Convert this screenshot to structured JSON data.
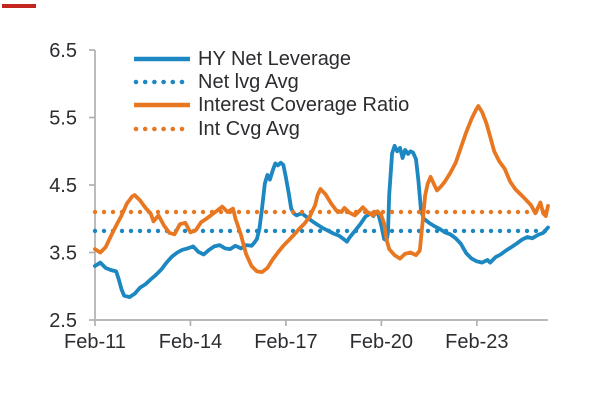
{
  "colors": {
    "blue": "#1d87c1",
    "orange": "#e87722",
    "axis": "#b0b0b0",
    "text": "#2d2d31",
    "top_left_mark": "#c2261f"
  },
  "chart_data": {
    "type": "line",
    "title": "",
    "xlabel": "",
    "ylabel": "",
    "grid": false,
    "legend_position": "top-left-inside",
    "x_axis": {
      "tick_labels": [
        "Feb-11",
        "Feb-14",
        "Feb-17",
        "Feb-20",
        "Feb-23"
      ],
      "tick_years": [
        2011.083,
        2014.083,
        2017.083,
        2020.083,
        2023.083
      ],
      "range": [
        2011.083,
        2025.32
      ]
    },
    "y_axis": {
      "ticks": [
        2.5,
        3.5,
        4.5,
        5.5,
        6.5
      ],
      "tick_labels": [
        "2.5",
        "3.5",
        "4.5",
        "5.5",
        "6.5"
      ],
      "range": [
        2.5,
        6.5
      ]
    },
    "series": [
      {
        "name": "HY Net Leverage",
        "style": "solid",
        "color": "#1d87c1",
        "points": [
          [
            2011.08,
            3.3
          ],
          [
            2011.25,
            3.35
          ],
          [
            2011.42,
            3.27
          ],
          [
            2011.58,
            3.24
          ],
          [
            2011.75,
            3.22
          ],
          [
            2011.83,
            3.1
          ],
          [
            2011.92,
            2.95
          ],
          [
            2012.0,
            2.86
          ],
          [
            2012.17,
            2.84
          ],
          [
            2012.33,
            2.89
          ],
          [
            2012.5,
            2.98
          ],
          [
            2012.67,
            3.03
          ],
          [
            2012.83,
            3.1
          ],
          [
            2013.0,
            3.17
          ],
          [
            2013.17,
            3.25
          ],
          [
            2013.33,
            3.35
          ],
          [
            2013.5,
            3.44
          ],
          [
            2013.67,
            3.5
          ],
          [
            2013.83,
            3.54
          ],
          [
            2014.0,
            3.56
          ],
          [
            2014.17,
            3.59
          ],
          [
            2014.33,
            3.51
          ],
          [
            2014.5,
            3.47
          ],
          [
            2014.67,
            3.54
          ],
          [
            2014.83,
            3.59
          ],
          [
            2015.0,
            3.61
          ],
          [
            2015.17,
            3.56
          ],
          [
            2015.33,
            3.55
          ],
          [
            2015.5,
            3.6
          ],
          [
            2015.67,
            3.56
          ],
          [
            2015.83,
            3.61
          ],
          [
            2016.0,
            3.6
          ],
          [
            2016.08,
            3.64
          ],
          [
            2016.17,
            3.7
          ],
          [
            2016.25,
            3.85
          ],
          [
            2016.33,
            4.15
          ],
          [
            2016.42,
            4.52
          ],
          [
            2016.5,
            4.65
          ],
          [
            2016.58,
            4.58
          ],
          [
            2016.67,
            4.72
          ],
          [
            2016.75,
            4.82
          ],
          [
            2016.83,
            4.79
          ],
          [
            2016.92,
            4.83
          ],
          [
            2017.0,
            4.8
          ],
          [
            2017.08,
            4.62
          ],
          [
            2017.17,
            4.38
          ],
          [
            2017.25,
            4.15
          ],
          [
            2017.33,
            4.08
          ],
          [
            2017.42,
            4.05
          ],
          [
            2017.58,
            4.08
          ],
          [
            2017.75,
            4.02
          ],
          [
            2017.92,
            3.96
          ],
          [
            2018.08,
            3.91
          ],
          [
            2018.25,
            3.86
          ],
          [
            2018.42,
            3.82
          ],
          [
            2018.58,
            3.78
          ],
          [
            2018.75,
            3.75
          ],
          [
            2018.92,
            3.69
          ],
          [
            2019.0,
            3.66
          ],
          [
            2019.08,
            3.72
          ],
          [
            2019.25,
            3.82
          ],
          [
            2019.42,
            3.92
          ],
          [
            2019.58,
            4.03
          ],
          [
            2019.75,
            4.08
          ],
          [
            2019.83,
            4.04
          ],
          [
            2019.92,
            4.1
          ],
          [
            2020.0,
            4.05
          ],
          [
            2020.08,
            3.9
          ],
          [
            2020.17,
            3.7
          ],
          [
            2020.25,
            3.68
          ],
          [
            2020.29,
            3.8
          ],
          [
            2020.33,
            4.35
          ],
          [
            2020.42,
            4.97
          ],
          [
            2020.5,
            5.08
          ],
          [
            2020.58,
            5.0
          ],
          [
            2020.67,
            5.05
          ],
          [
            2020.75,
            4.9
          ],
          [
            2020.83,
            5.02
          ],
          [
            2020.92,
            4.96
          ],
          [
            2021.0,
            5.0
          ],
          [
            2021.08,
            4.98
          ],
          [
            2021.17,
            4.88
          ],
          [
            2021.25,
            4.55
          ],
          [
            2021.33,
            4.12
          ],
          [
            2021.42,
            4.0
          ],
          [
            2021.58,
            3.94
          ],
          [
            2021.75,
            3.89
          ],
          [
            2021.92,
            3.85
          ],
          [
            2022.08,
            3.8
          ],
          [
            2022.25,
            3.77
          ],
          [
            2022.42,
            3.71
          ],
          [
            2022.58,
            3.63
          ],
          [
            2022.75,
            3.49
          ],
          [
            2022.92,
            3.41
          ],
          [
            2023.08,
            3.37
          ],
          [
            2023.25,
            3.35
          ],
          [
            2023.42,
            3.39
          ],
          [
            2023.5,
            3.35
          ],
          [
            2023.67,
            3.43
          ],
          [
            2023.83,
            3.47
          ],
          [
            2024.0,
            3.53
          ],
          [
            2024.17,
            3.58
          ],
          [
            2024.33,
            3.63
          ],
          [
            2024.5,
            3.69
          ],
          [
            2024.67,
            3.73
          ],
          [
            2024.83,
            3.71
          ],
          [
            2025.0,
            3.76
          ],
          [
            2025.17,
            3.79
          ],
          [
            2025.32,
            3.87
          ]
        ]
      },
      {
        "name": "Net lvg Avg",
        "style": "dotted",
        "color": "#1d87c1",
        "avg_value": 3.82
      },
      {
        "name": "Interest Coverage Ratio",
        "style": "solid",
        "color": "#e87722",
        "points": [
          [
            2011.08,
            3.55
          ],
          [
            2011.25,
            3.5
          ],
          [
            2011.42,
            3.58
          ],
          [
            2011.58,
            3.74
          ],
          [
            2011.75,
            3.9
          ],
          [
            2011.92,
            4.05
          ],
          [
            2012.08,
            4.22
          ],
          [
            2012.25,
            4.33
          ],
          [
            2012.33,
            4.35
          ],
          [
            2012.5,
            4.27
          ],
          [
            2012.67,
            4.16
          ],
          [
            2012.83,
            4.08
          ],
          [
            2012.92,
            3.96
          ],
          [
            2013.08,
            4.05
          ],
          [
            2013.25,
            3.9
          ],
          [
            2013.42,
            3.79
          ],
          [
            2013.58,
            3.77
          ],
          [
            2013.75,
            3.92
          ],
          [
            2013.92,
            3.94
          ],
          [
            2014.08,
            3.8
          ],
          [
            2014.25,
            3.83
          ],
          [
            2014.42,
            3.95
          ],
          [
            2014.58,
            4.0
          ],
          [
            2014.75,
            4.06
          ],
          [
            2014.92,
            4.12
          ],
          [
            2015.08,
            4.18
          ],
          [
            2015.25,
            4.1
          ],
          [
            2015.42,
            4.15
          ],
          [
            2015.5,
            4.0
          ],
          [
            2015.67,
            3.76
          ],
          [
            2015.83,
            3.48
          ],
          [
            2016.0,
            3.3
          ],
          [
            2016.17,
            3.22
          ],
          [
            2016.33,
            3.21
          ],
          [
            2016.5,
            3.27
          ],
          [
            2016.67,
            3.4
          ],
          [
            2016.83,
            3.5
          ],
          [
            2017.0,
            3.6
          ],
          [
            2017.17,
            3.68
          ],
          [
            2017.33,
            3.76
          ],
          [
            2017.5,
            3.85
          ],
          [
            2017.67,
            3.93
          ],
          [
            2017.83,
            4.03
          ],
          [
            2018.0,
            4.2
          ],
          [
            2018.08,
            4.35
          ],
          [
            2018.17,
            4.44
          ],
          [
            2018.33,
            4.36
          ],
          [
            2018.5,
            4.23
          ],
          [
            2018.67,
            4.12
          ],
          [
            2018.83,
            4.1
          ],
          [
            2018.92,
            4.16
          ],
          [
            2019.08,
            4.09
          ],
          [
            2019.25,
            4.05
          ],
          [
            2019.42,
            4.13
          ],
          [
            2019.5,
            4.17
          ],
          [
            2019.67,
            4.09
          ],
          [
            2019.83,
            4.05
          ],
          [
            2019.96,
            4.11
          ],
          [
            2020.08,
            4.05
          ],
          [
            2020.17,
            3.93
          ],
          [
            2020.25,
            3.68
          ],
          [
            2020.33,
            3.55
          ],
          [
            2020.5,
            3.46
          ],
          [
            2020.67,
            3.41
          ],
          [
            2020.83,
            3.48
          ],
          [
            2021.0,
            3.5
          ],
          [
            2021.17,
            3.46
          ],
          [
            2021.29,
            3.53
          ],
          [
            2021.38,
            3.95
          ],
          [
            2021.46,
            4.35
          ],
          [
            2021.54,
            4.52
          ],
          [
            2021.63,
            4.62
          ],
          [
            2021.75,
            4.5
          ],
          [
            2021.83,
            4.42
          ],
          [
            2021.96,
            4.48
          ],
          [
            2022.08,
            4.55
          ],
          [
            2022.25,
            4.68
          ],
          [
            2022.42,
            4.83
          ],
          [
            2022.58,
            5.05
          ],
          [
            2022.75,
            5.28
          ],
          [
            2022.92,
            5.48
          ],
          [
            2023.04,
            5.6
          ],
          [
            2023.13,
            5.67
          ],
          [
            2023.25,
            5.58
          ],
          [
            2023.38,
            5.42
          ],
          [
            2023.5,
            5.22
          ],
          [
            2023.63,
            5.0
          ],
          [
            2023.79,
            4.85
          ],
          [
            2023.96,
            4.74
          ],
          [
            2024.13,
            4.55
          ],
          [
            2024.29,
            4.44
          ],
          [
            2024.46,
            4.36
          ],
          [
            2024.63,
            4.28
          ],
          [
            2024.79,
            4.2
          ],
          [
            2024.92,
            4.08
          ],
          [
            2025.0,
            4.16
          ],
          [
            2025.08,
            4.24
          ],
          [
            2025.17,
            4.08
          ],
          [
            2025.25,
            4.04
          ],
          [
            2025.32,
            4.19
          ]
        ]
      },
      {
        "name": "Int Cvg Avg",
        "style": "dotted",
        "color": "#e87722",
        "avg_value": 4.1
      }
    ]
  }
}
